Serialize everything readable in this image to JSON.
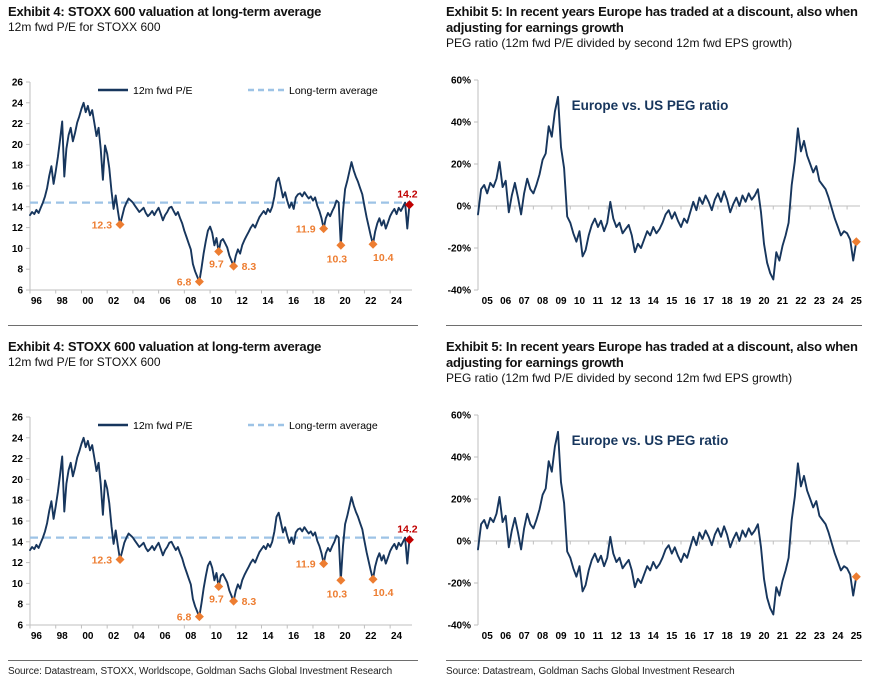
{
  "page": {
    "background": "#ffffff"
  },
  "colors": {
    "navy": "#17365D",
    "light_blue": "#9DC3E6",
    "orange": "#ED7D31",
    "red": "#C00000",
    "axis": "#BFBFBF",
    "text": "#000000"
  },
  "exhibits": {
    "left": {
      "title": "Exhibit 4: STOXX 600 valuation at long-term average",
      "subtitle": "12m fwd P/E for STOXX 600",
      "source": "Source: Datastream, STOXX, Worldscope, Goldman Sachs Global Investment Research"
    },
    "right": {
      "title": "Exhibit 5: In recent years Europe has traded at a discount, also when adjusting for earnings growth",
      "subtitle": "PEG ratio (12m fwd P/E divided by second 12m fwd EPS growth)",
      "source": "Source: Datastream, Goldman Sachs Global Investment Research"
    }
  },
  "chart_data": [
    {
      "type": "line",
      "name": "stoxx-600-12m-fwd-pe",
      "legend": [
        {
          "label": "12m fwd P/E",
          "style": "solid",
          "color": "navy"
        },
        {
          "label": "Long-term average",
          "style": "dashed",
          "color": "light_blue"
        }
      ],
      "ylim": [
        6,
        26
      ],
      "yticks": [
        6,
        8,
        10,
        12,
        14,
        16,
        18,
        20,
        22,
        24,
        26
      ],
      "ytick_suffix": "",
      "xlim": [
        1996,
        2025.7
      ],
      "xticks": {
        "years": [
          1996,
          1998,
          2000,
          2002,
          2004,
          2006,
          2008,
          2010,
          2012,
          2014,
          2016,
          2018,
          2020,
          2022,
          2024
        ],
        "labels": [
          "96",
          "98",
          "00",
          "02",
          "04",
          "06",
          "08",
          "10",
          "12",
          "14",
          "16",
          "18",
          "20",
          "22",
          "24"
        ],
        "label_center": 0.5
      },
      "x_start": 1996,
      "x_step": 0.1666667,
      "series_color": "navy",
      "average": 14.4,
      "values": [
        13.2,
        13.5,
        13.3,
        13.7,
        13.4,
        13.9,
        14.4,
        15.0,
        15.8,
        17.0,
        17.9,
        16.2,
        17.4,
        18.8,
        20.4,
        22.2,
        16.9,
        19.6,
        20.9,
        21.6,
        20.3,
        21.1,
        22.1,
        22.7,
        23.4,
        24.0,
        23.1,
        23.7,
        22.8,
        23.3,
        22.1,
        20.8,
        21.6,
        19.6,
        16.6,
        19.9,
        19.1,
        17.7,
        15.5,
        13.8,
        15.1,
        13.6,
        12.3,
        13.1,
        13.9,
        14.4,
        14.8,
        14.6,
        14.4,
        14.1,
        13.8,
        13.5,
        13.7,
        13.9,
        13.4,
        13.1,
        13.3,
        13.6,
        13.2,
        13.6,
        13.9,
        13.3,
        12.7,
        13.2,
        13.5,
        13.9,
        14.0,
        13.6,
        13.2,
        13.5,
        12.9,
        12.4,
        11.7,
        11.1,
        10.5,
        9.9,
        8.5,
        7.8,
        7.3,
        6.8,
        8.1,
        9.5,
        10.7,
        11.7,
        12.1,
        11.5,
        10.3,
        11.0,
        9.7,
        10.7,
        10.9,
        10.5,
        10.1,
        9.3,
        8.8,
        8.3,
        9.3,
        9.9,
        9.5,
        10.3,
        10.8,
        11.2,
        11.6,
        12.0,
        12.3,
        12.0,
        12.5,
        13.0,
        13.3,
        13.6,
        13.3,
        13.8,
        13.5,
        14.0,
        15.0,
        16.4,
        16.8,
        15.9,
        14.9,
        15.4,
        14.6,
        13.9,
        14.4,
        13.8,
        14.9,
        15.2,
        15.3,
        15.0,
        15.4,
        15.1,
        14.8,
        15.0,
        14.6,
        14.9,
        14.1,
        13.6,
        12.9,
        11.9,
        12.9,
        13.4,
        13.1,
        13.6,
        14.0,
        14.6,
        14.4,
        10.3,
        13.6,
        15.7,
        16.5,
        17.4,
        18.3,
        17.5,
        16.9,
        16.4,
        15.8,
        15.2,
        14.1,
        13.0,
        12.1,
        11.2,
        10.4,
        11.6,
        12.4,
        12.9,
        12.2,
        12.7,
        11.9,
        12.5,
        13.1,
        13.5,
        13.8,
        13.3,
        13.9,
        13.6,
        14.0,
        14.4,
        11.9,
        14.2
      ],
      "markers": [
        {
          "x": 2003.0,
          "y": 12.3,
          "label": "12.3",
          "label_pos": "left",
          "color": "orange"
        },
        {
          "x": 2009.17,
          "y": 6.8,
          "label": "6.8",
          "label_pos": "left",
          "color": "orange"
        },
        {
          "x": 2010.67,
          "y": 9.7,
          "label": "9.7",
          "label_pos": "below-left",
          "color": "orange"
        },
        {
          "x": 2011.83,
          "y": 8.3,
          "label": "8.3",
          "label_pos": "right",
          "color": "orange"
        },
        {
          "x": 2018.83,
          "y": 11.9,
          "label": "11.9",
          "label_pos": "left",
          "color": "orange"
        },
        {
          "x": 2020.17,
          "y": 10.3,
          "label": "10.3",
          "label_pos": "below",
          "color": "orange"
        },
        {
          "x": 2022.67,
          "y": 10.4,
          "label": "10.4",
          "label_pos": "below-right",
          "color": "orange"
        },
        {
          "x": 2025.5,
          "y": 14.2,
          "label": "14.2",
          "label_pos": "above",
          "color": "red"
        }
      ],
      "axis_at_zero": false
    },
    {
      "type": "line",
      "name": "europe-vs-us-peg-ratio",
      "title": "Europe vs. US PEG ratio",
      "ylim": [
        -40,
        60
      ],
      "yticks": [
        -40,
        -20,
        0,
        20,
        40,
        60
      ],
      "ytick_suffix": "%",
      "xlim": [
        2005,
        2025.7
      ],
      "xticks": {
        "years": [
          2005,
          2006,
          2007,
          2008,
          2009,
          2010,
          2011,
          2012,
          2013,
          2014,
          2015,
          2016,
          2017,
          2018,
          2019,
          2020,
          2021,
          2022,
          2023,
          2024,
          2025
        ],
        "labels": [
          "05",
          "06",
          "07",
          "08",
          "09",
          "10",
          "11",
          "12",
          "13",
          "14",
          "15",
          "16",
          "17",
          "18",
          "19",
          "20",
          "21",
          "22",
          "23",
          "24",
          "25"
        ],
        "label_center": 0.5
      },
      "x_start": 2005,
      "x_step": 0.1666667,
      "series_color": "navy",
      "average": null,
      "values": [
        -4,
        8,
        10,
        6,
        11,
        9,
        13,
        21,
        9,
        12,
        -3,
        5,
        11,
        4,
        -4,
        6,
        13,
        8,
        6,
        10,
        15,
        22,
        25,
        38,
        33,
        45,
        52,
        28,
        18,
        -5,
        -8,
        -13,
        -17,
        -12,
        -24,
        -21,
        -14,
        -9,
        -6,
        -10,
        -7,
        -12,
        -8,
        2,
        -6,
        -10,
        -8,
        -13,
        -11,
        -9,
        -14,
        -22,
        -18,
        -20,
        -16,
        -12,
        -14,
        -10,
        -13,
        -11,
        -8,
        -4,
        -2,
        -6,
        -3,
        -7,
        -10,
        -6,
        -8,
        -3,
        2,
        -2,
        4,
        1,
        5,
        2,
        -2,
        3,
        6,
        2,
        7,
        3,
        -3,
        1,
        4,
        0,
        5,
        2,
        6,
        3,
        5,
        8,
        -3,
        -18,
        -27,
        -32,
        -35,
        -22,
        -26,
        -19,
        -14,
        -8,
        10,
        21,
        37,
        26,
        31,
        24,
        20,
        16,
        19,
        12,
        10,
        8,
        4,
        -1,
        -6,
        -10,
        -14,
        -12,
        -13,
        -16,
        -26,
        -17
      ],
      "markers": [
        {
          "x": 2025.5,
          "y": -17,
          "label": "",
          "label_pos": "none",
          "color": "orange"
        }
      ],
      "axis_at_zero": true
    }
  ]
}
